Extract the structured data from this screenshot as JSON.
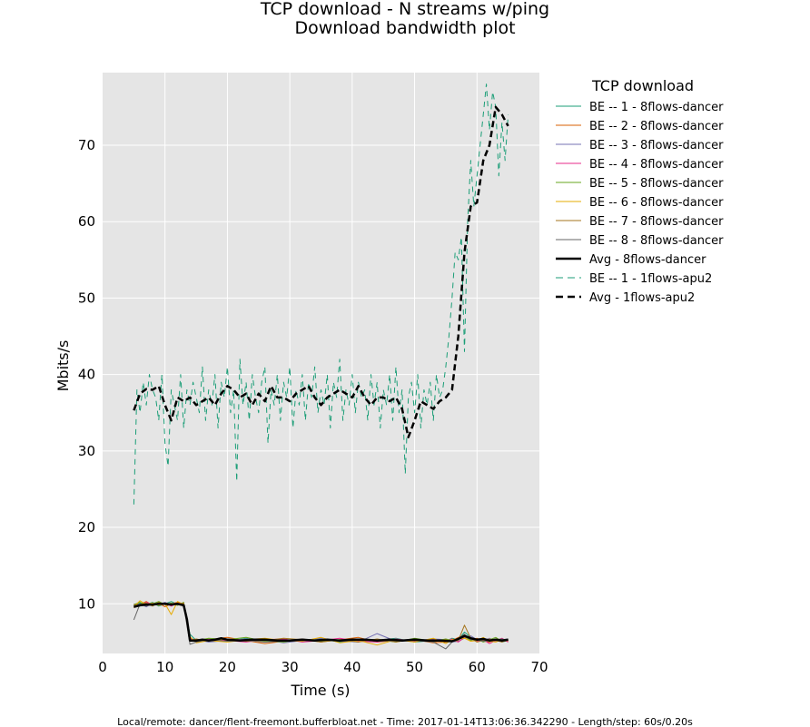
{
  "title": "TCP download - N streams w/ping",
  "subtitle": "Download bandwidth plot",
  "footer": "Local/remote: dancer/flent-freemont.bufferbloat.net - Time: 2017-01-14T13:06:36.342290 - Length/step: 60s/0.20s",
  "legend_title": "TCP download",
  "chart_data": {
    "type": "line",
    "title": "TCP download - N streams w/ping",
    "subtitle": "Download bandwidth plot",
    "xlabel": "Time (s)",
    "ylabel": "Mbits/s",
    "xlim": [
      0,
      70
    ],
    "ylim": [
      3.5,
      79.5
    ],
    "xticks": [
      0,
      10,
      20,
      30,
      40,
      50,
      60,
      70
    ],
    "yticks": [
      10,
      20,
      30,
      40,
      50,
      60,
      70
    ],
    "grid": true,
    "background": "#e5e5e5",
    "legend_position": "outside-right",
    "series": [
      {
        "name": "BE -- 1 - 8flows-dancer",
        "color": "#1b9e77",
        "dash": "solid",
        "width": 1,
        "x": [
          5,
          6,
          7,
          8,
          9,
          10,
          11,
          12,
          13,
          14,
          15,
          17,
          20,
          23,
          26,
          29,
          32,
          35,
          38,
          41,
          44,
          47,
          50,
          53,
          55,
          56,
          57,
          58,
          59,
          60,
          61,
          62,
          63,
          64,
          65
        ],
        "y": [
          9.8,
          10.1,
          9.9,
          10.2,
          9.7,
          10.0,
          10.3,
          9.9,
          10.1,
          6.0,
          5.2,
          5.4,
          5.1,
          5.5,
          5.0,
          5.3,
          5.1,
          5.4,
          5.0,
          5.3,
          5.2,
          5.5,
          5.0,
          5.2,
          5.1,
          5.5,
          5.3,
          6.3,
          5.6,
          5.2,
          5.4,
          5.1,
          5.3,
          5.0,
          5.2
        ]
      },
      {
        "name": "BE -- 2 - 8flows-dancer",
        "color": "#d95f02",
        "dash": "solid",
        "width": 1,
        "x": [
          5,
          6,
          7,
          8,
          9,
          10,
          11,
          12,
          13,
          14,
          15,
          17,
          20,
          23,
          26,
          29,
          32,
          35,
          38,
          41,
          44,
          47,
          50,
          53,
          55,
          56,
          57,
          58,
          59,
          60,
          61,
          62,
          63,
          64,
          65
        ],
        "y": [
          9.5,
          9.9,
          10.3,
          9.8,
          10.1,
          9.6,
          10.0,
          10.2,
          9.8,
          5.6,
          5.0,
          5.3,
          5.6,
          5.2,
          4.8,
          5.1,
          5.4,
          5.0,
          5.3,
          5.6,
          5.0,
          5.2,
          5.3,
          4.9,
          5.0,
          5.2,
          5.6,
          5.9,
          5.3,
          5.5,
          5.1,
          5.0,
          5.4,
          5.2,
          5.1
        ]
      },
      {
        "name": "BE -- 3 - 8flows-dancer",
        "color": "#7570b3",
        "dash": "solid",
        "width": 1,
        "x": [
          5,
          6,
          7,
          8,
          9,
          10,
          11,
          12,
          13,
          14,
          15,
          17,
          20,
          23,
          26,
          29,
          32,
          35,
          38,
          41,
          44,
          47,
          50,
          53,
          55,
          56,
          57,
          58,
          59,
          60,
          61,
          62,
          63,
          64,
          65
        ],
        "y": [
          9.7,
          10.0,
          9.6,
          10.1,
          9.9,
          10.2,
          9.8,
          10.0,
          9.9,
          5.4,
          5.3,
          5.0,
          5.2,
          5.4,
          5.3,
          4.9,
          5.2,
          5.5,
          5.1,
          5.0,
          6.1,
          5.1,
          5.2,
          5.4,
          5.3,
          5.0,
          5.1,
          5.5,
          5.8,
          5.3,
          5.2,
          5.5,
          5.1,
          5.3,
          5.4
        ]
      },
      {
        "name": "BE -- 4 - 8flows-dancer",
        "color": "#e7298a",
        "dash": "solid",
        "width": 1,
        "x": [
          5,
          6,
          7,
          8,
          9,
          10,
          11,
          12,
          13,
          14,
          15,
          17,
          20,
          23,
          26,
          29,
          32,
          35,
          38,
          41,
          44,
          47,
          50,
          53,
          55,
          56,
          57,
          58,
          59,
          60,
          61,
          62,
          63,
          64,
          65
        ],
        "y": [
          10.0,
          9.8,
          10.2,
          9.9,
          10.0,
          10.1,
          9.7,
          10.1,
          10.0,
          5.5,
          5.1,
          5.4,
          5.2,
          5.0,
          5.3,
          5.4,
          5.0,
          5.2,
          5.5,
          5.1,
          5.0,
          5.4,
          5.1,
          5.3,
          5.2,
          5.4,
          5.0,
          5.6,
          5.4,
          5.1,
          5.3,
          4.8,
          5.2,
          5.5,
          5.0
        ]
      },
      {
        "name": "BE -- 5 - 8flows-dancer",
        "color": "#66a61e",
        "dash": "solid",
        "width": 1,
        "x": [
          5,
          6,
          7,
          8,
          9,
          10,
          11,
          12,
          13,
          14,
          15,
          17,
          20,
          23,
          26,
          29,
          32,
          35,
          38,
          41,
          44,
          47,
          50,
          53,
          55,
          56,
          57,
          58,
          59,
          60,
          61,
          62,
          63,
          64,
          65
        ],
        "y": [
          9.9,
          10.2,
          9.8,
          10.0,
          10.3,
          9.9,
          10.1,
          9.8,
          10.2,
          5.3,
          5.2,
          5.5,
          5.3,
          5.6,
          5.1,
          5.0,
          5.3,
          5.1,
          5.2,
          5.4,
          5.3,
          5.0,
          5.5,
          5.1,
          5.4,
          5.2,
          5.3,
          5.7,
          5.2,
          5.4,
          5.0,
          5.3,
          5.6,
          5.1,
          5.4
        ]
      },
      {
        "name": "BE -- 6 - 8flows-dancer",
        "color": "#e6ab02",
        "dash": "solid",
        "width": 1,
        "x": [
          5,
          6,
          7,
          8,
          9,
          10,
          11,
          12,
          13,
          14,
          15,
          17,
          20,
          23,
          26,
          29,
          32,
          35,
          38,
          41,
          44,
          47,
          50,
          53,
          55,
          56,
          57,
          58,
          59,
          60,
          61,
          62,
          63,
          64,
          65
        ],
        "y": [
          9.6,
          10.4,
          9.9,
          10.1,
          9.8,
          10.0,
          8.6,
          10.3,
          9.9,
          5.7,
          4.9,
          5.2,
          5.0,
          5.3,
          5.5,
          5.2,
          5.1,
          5.6,
          4.9,
          5.2,
          4.6,
          5.3,
          5.0,
          5.5,
          4.8,
          5.3,
          5.4,
          5.5,
          5.1,
          5.2,
          5.6,
          5.1,
          5.0,
          5.3,
          5.2
        ]
      },
      {
        "name": "BE -- 7 - 8flows-dancer",
        "color": "#a6761d",
        "dash": "solid",
        "width": 1,
        "x": [
          5,
          6,
          7,
          8,
          9,
          10,
          11,
          12,
          13,
          14,
          15,
          17,
          20,
          23,
          26,
          29,
          32,
          35,
          38,
          41,
          44,
          47,
          50,
          53,
          55,
          56,
          57,
          58,
          59,
          60,
          61,
          62,
          63,
          64,
          65
        ],
        "y": [
          9.8,
          9.9,
          10.1,
          9.7,
          10.2,
          9.9,
          10.0,
          9.9,
          10.1,
          5.2,
          5.4,
          5.1,
          5.4,
          5.1,
          5.2,
          5.5,
          5.3,
          5.0,
          5.3,
          5.0,
          5.4,
          5.0,
          5.4,
          5.0,
          5.3,
          5.1,
          5.2,
          7.2,
          5.5,
          5.0,
          5.2,
          5.4,
          5.2,
          5.0,
          5.3
        ]
      },
      {
        "name": "BE -- 8 - 8flows-dancer",
        "color": "#666666",
        "dash": "solid",
        "width": 1,
        "x": [
          5,
          6,
          7,
          8,
          9,
          10,
          11,
          12,
          13,
          14,
          15,
          17,
          20,
          23,
          26,
          29,
          32,
          35,
          38,
          41,
          44,
          47,
          50,
          53,
          55,
          56,
          57,
          58,
          59,
          60,
          61,
          62,
          63,
          64,
          65
        ],
        "y": [
          7.9,
          10.0,
          9.7,
          10.0,
          9.9,
          10.1,
          9.9,
          10.0,
          9.8,
          4.7,
          5.0,
          5.3,
          5.1,
          5.2,
          5.0,
          5.1,
          5.2,
          5.3,
          5.2,
          5.3,
          5.1,
          5.2,
          5.2,
          5.0,
          4.1,
          5.0,
          5.5,
          6.0,
          5.3,
          5.3,
          5.1,
          5.2,
          5.3,
          5.4,
          5.2
        ]
      },
      {
        "name": "Avg - 8flows-dancer",
        "color": "#000000",
        "dash": "solid",
        "width": 2.5,
        "x": [
          5,
          6,
          7,
          8,
          9,
          10,
          11,
          12,
          13,
          13.5,
          14,
          15,
          16,
          17,
          18,
          19,
          20,
          22,
          24,
          26,
          28,
          30,
          32,
          34,
          36,
          38,
          40,
          42,
          44,
          46,
          48,
          50,
          52,
          54,
          56,
          57,
          58,
          59,
          60,
          61,
          62,
          63,
          64,
          65
        ],
        "y": [
          9.6,
          9.8,
          9.9,
          9.9,
          10.0,
          10.0,
          9.9,
          10.0,
          9.8,
          8.0,
          5.2,
          5.2,
          5.3,
          5.2,
          5.3,
          5.5,
          5.3,
          5.2,
          5.3,
          5.3,
          5.2,
          5.2,
          5.3,
          5.2,
          5.3,
          5.2,
          5.3,
          5.3,
          5.2,
          5.3,
          5.2,
          5.3,
          5.2,
          5.2,
          5.1,
          5.4,
          5.8,
          5.5,
          5.3,
          5.4,
          5.2,
          5.3,
          5.2,
          5.3
        ]
      },
      {
        "name": "BE -- 1 - 1flows-apu2",
        "color": "#1b9e77",
        "dash": "dashed",
        "width": 1,
        "x": [
          5,
          5.5,
          6,
          6.5,
          7,
          7.5,
          8,
          8.5,
          9,
          9.5,
          10,
          10.5,
          11,
          11.5,
          12,
          12.5,
          13,
          13.5,
          14,
          14.5,
          15,
          15.5,
          16,
          16.5,
          17,
          17.5,
          18,
          18.5,
          19,
          19.5,
          20,
          20.5,
          21,
          21.5,
          22,
          22.5,
          23,
          23.5,
          24,
          24.5,
          25,
          25.5,
          26,
          26.5,
          27,
          27.5,
          28,
          28.5,
          29,
          29.5,
          30,
          30.5,
          31,
          31.5,
          32,
          32.5,
          33,
          33.5,
          34,
          34.5,
          35,
          35.5,
          36,
          36.5,
          37,
          37.5,
          38,
          38.5,
          39,
          39.5,
          40,
          40.5,
          41,
          41.5,
          42,
          42.5,
          43,
          43.5,
          44,
          44.5,
          45,
          45.5,
          46,
          46.5,
          47,
          47.5,
          48,
          48.5,
          49,
          49.5,
          50,
          50.5,
          51,
          51.5,
          52,
          52.5,
          53,
          53.5,
          54,
          54.5,
          55,
          55.5,
          56,
          56.5,
          57,
          57.5,
          58,
          58.5,
          59,
          59.5,
          60,
          60.5,
          61,
          61.5,
          62,
          62.5,
          63,
          63.5,
          64,
          64.5,
          65
        ],
        "y": [
          23,
          38,
          35,
          39,
          36,
          40,
          38,
          37,
          34,
          40,
          31,
          28,
          38,
          36,
          34,
          40,
          33,
          38,
          36,
          39,
          37,
          35,
          41,
          34,
          38,
          36,
          40,
          33,
          39,
          37,
          41,
          35,
          38,
          26,
          42,
          36,
          39,
          34,
          40,
          37,
          35,
          39,
          41,
          31,
          38,
          36,
          40,
          34,
          39,
          37,
          41,
          33,
          38,
          36,
          40,
          34,
          39,
          37,
          41,
          35,
          38,
          36,
          40,
          33,
          39,
          37,
          42,
          34,
          38,
          36,
          40,
          35,
          39,
          37,
          38,
          34,
          40,
          36,
          39,
          33,
          38,
          36,
          40,
          34,
          41,
          35,
          38,
          27,
          37,
          39,
          35,
          40,
          33,
          38,
          36,
          39,
          34,
          40,
          37,
          38,
          41,
          45,
          50,
          56,
          55,
          58,
          43,
          60,
          68,
          62,
          66,
          70,
          74,
          78,
          72,
          77,
          75,
          66,
          73,
          68,
          74
        ]
      },
      {
        "name": "Avg - 1flows-apu2",
        "color": "#000000",
        "dash": "dashed",
        "width": 2.5,
        "x": [
          5,
          6,
          7,
          8,
          9,
          10,
          11,
          12,
          13,
          14,
          15,
          16,
          17,
          18,
          19,
          20,
          21,
          22,
          23,
          24,
          25,
          26,
          27,
          28,
          29,
          30,
          31,
          32,
          33,
          34,
          35,
          36,
          37,
          38,
          39,
          40,
          41,
          42,
          43,
          44,
          45,
          46,
          47,
          48,
          49,
          50,
          51,
          52,
          53,
          54,
          55,
          56,
          57,
          58,
          59,
          60,
          61,
          62,
          63,
          64,
          65
        ],
        "y": [
          35.3,
          37.5,
          38.1,
          38.0,
          38.5,
          36.0,
          34.0,
          37.0,
          36.5,
          37.0,
          36.0,
          36.5,
          37.0,
          36.0,
          37.5,
          38.5,
          38.0,
          37.0,
          37.5,
          36.0,
          37.5,
          36.5,
          38.5,
          37.0,
          37.0,
          36.5,
          37.5,
          38.0,
          38.5,
          37.0,
          36.0,
          37.0,
          37.5,
          38.0,
          37.5,
          37.0,
          38.5,
          37.0,
          36.0,
          37.0,
          37.0,
          36.5,
          37.0,
          35.5,
          31.8,
          34.0,
          36.5,
          36.0,
          35.5,
          36.5,
          37.0,
          38.0,
          45.0,
          56.0,
          62.0,
          62.5,
          68.0,
          70.0,
          75.0,
          74.0,
          72.5
        ]
      }
    ]
  }
}
